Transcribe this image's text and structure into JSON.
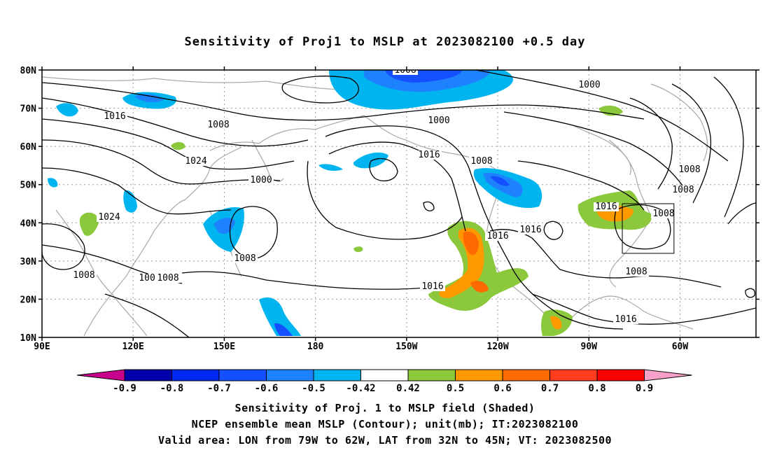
{
  "title": "Sensitivity of Proj1 to MSLP at 2023082100 +0.5 day",
  "axes": {
    "lat_labels": [
      "80N",
      "70N",
      "60N",
      "50N",
      "40N",
      "30N",
      "20N",
      "10N"
    ],
    "lon_labels": [
      "90E",
      "120E",
      "150E",
      "180",
      "150W",
      "120W",
      "90W",
      "60W"
    ]
  },
  "contour_labels": [
    "1008",
    "1000",
    "1016",
    "1008",
    "1000",
    "1024",
    "1016",
    "1008",
    "1008",
    "1000",
    "1008",
    "1024",
    "1016",
    "1008",
    "1016",
    "1016",
    "1008",
    "1008",
    "1008",
    "1016",
    "1008",
    "1016",
    "1008"
  ],
  "colorbar": {
    "labels": [
      "-0.9",
      "-0.8",
      "-0.7",
      "-0.6",
      "-0.5",
      "-0.42",
      "0.42",
      "0.5",
      "0.6",
      "0.7",
      "0.8",
      "0.9"
    ],
    "colors": [
      "#0000a8",
      "#0028ee",
      "#1450ff",
      "#1e82ff",
      "#00b4f0",
      "#ffffff",
      "#8cc83c",
      "#ff9900",
      "#ff6a00",
      "#ff3c1e",
      "#ff0000"
    ],
    "end_low_color": "#c8008c",
    "end_high_color": "#f7a0c8"
  },
  "valid_box": {
    "lon": [
      -79,
      -62
    ],
    "lat": [
      32,
      45
    ]
  },
  "captions": [
    "Sensitivity of Proj. 1 to MSLP field (Shaded)",
    "NCEP ensemble mean MSLP (Contour); unit(mb); IT:2023082100",
    "Valid area: LON from 79W to 62W, LAT from 32N to 45N; VT: 2023082500"
  ]
}
